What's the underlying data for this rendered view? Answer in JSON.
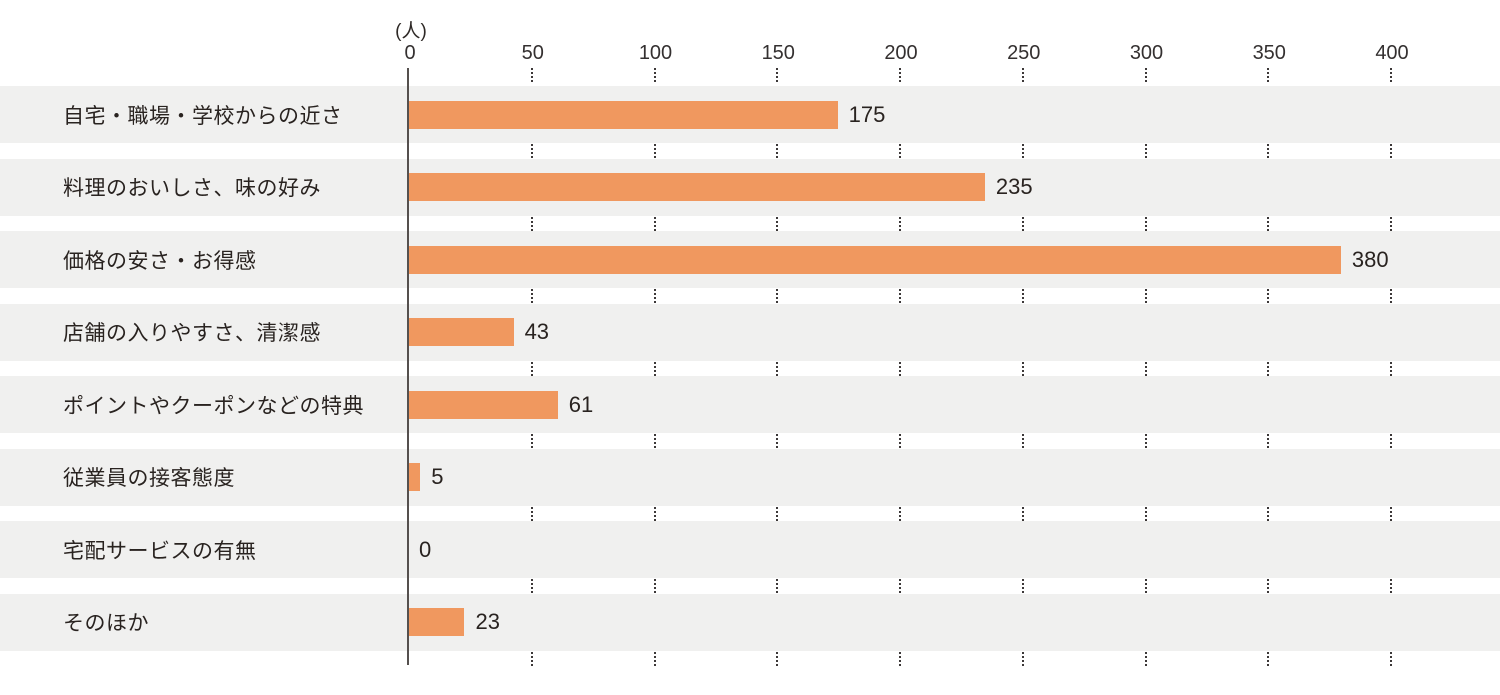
{
  "chart_data": {
    "type": "bar",
    "orientation": "horizontal",
    "title": "",
    "unit_label": "(人)",
    "categories": [
      "自宅・職場・学校からの近さ",
      "料理のおいしさ、味の好み",
      "価格の安さ・お得感",
      "店舗の入りやすさ、清潔感",
      "ポイントやクーポンなどの特典",
      "従業員の接客態度",
      "宅配サービスの有無",
      "そのほか"
    ],
    "values": [
      175,
      235,
      380,
      43,
      61,
      5,
      0,
      23
    ],
    "xlim": [
      0,
      400
    ],
    "xticks": [
      0,
      50,
      100,
      150,
      200,
      250,
      300,
      350,
      400
    ],
    "grid": "dotted vertical tick marks in row gaps",
    "legend_position": "none",
    "colors": {
      "bar": "#F0985F",
      "row_band": "#F0F0EF",
      "text": "#292320",
      "axis_line": "#55504e",
      "tick_dots": "#3c3838",
      "background": "#ffffff"
    }
  }
}
